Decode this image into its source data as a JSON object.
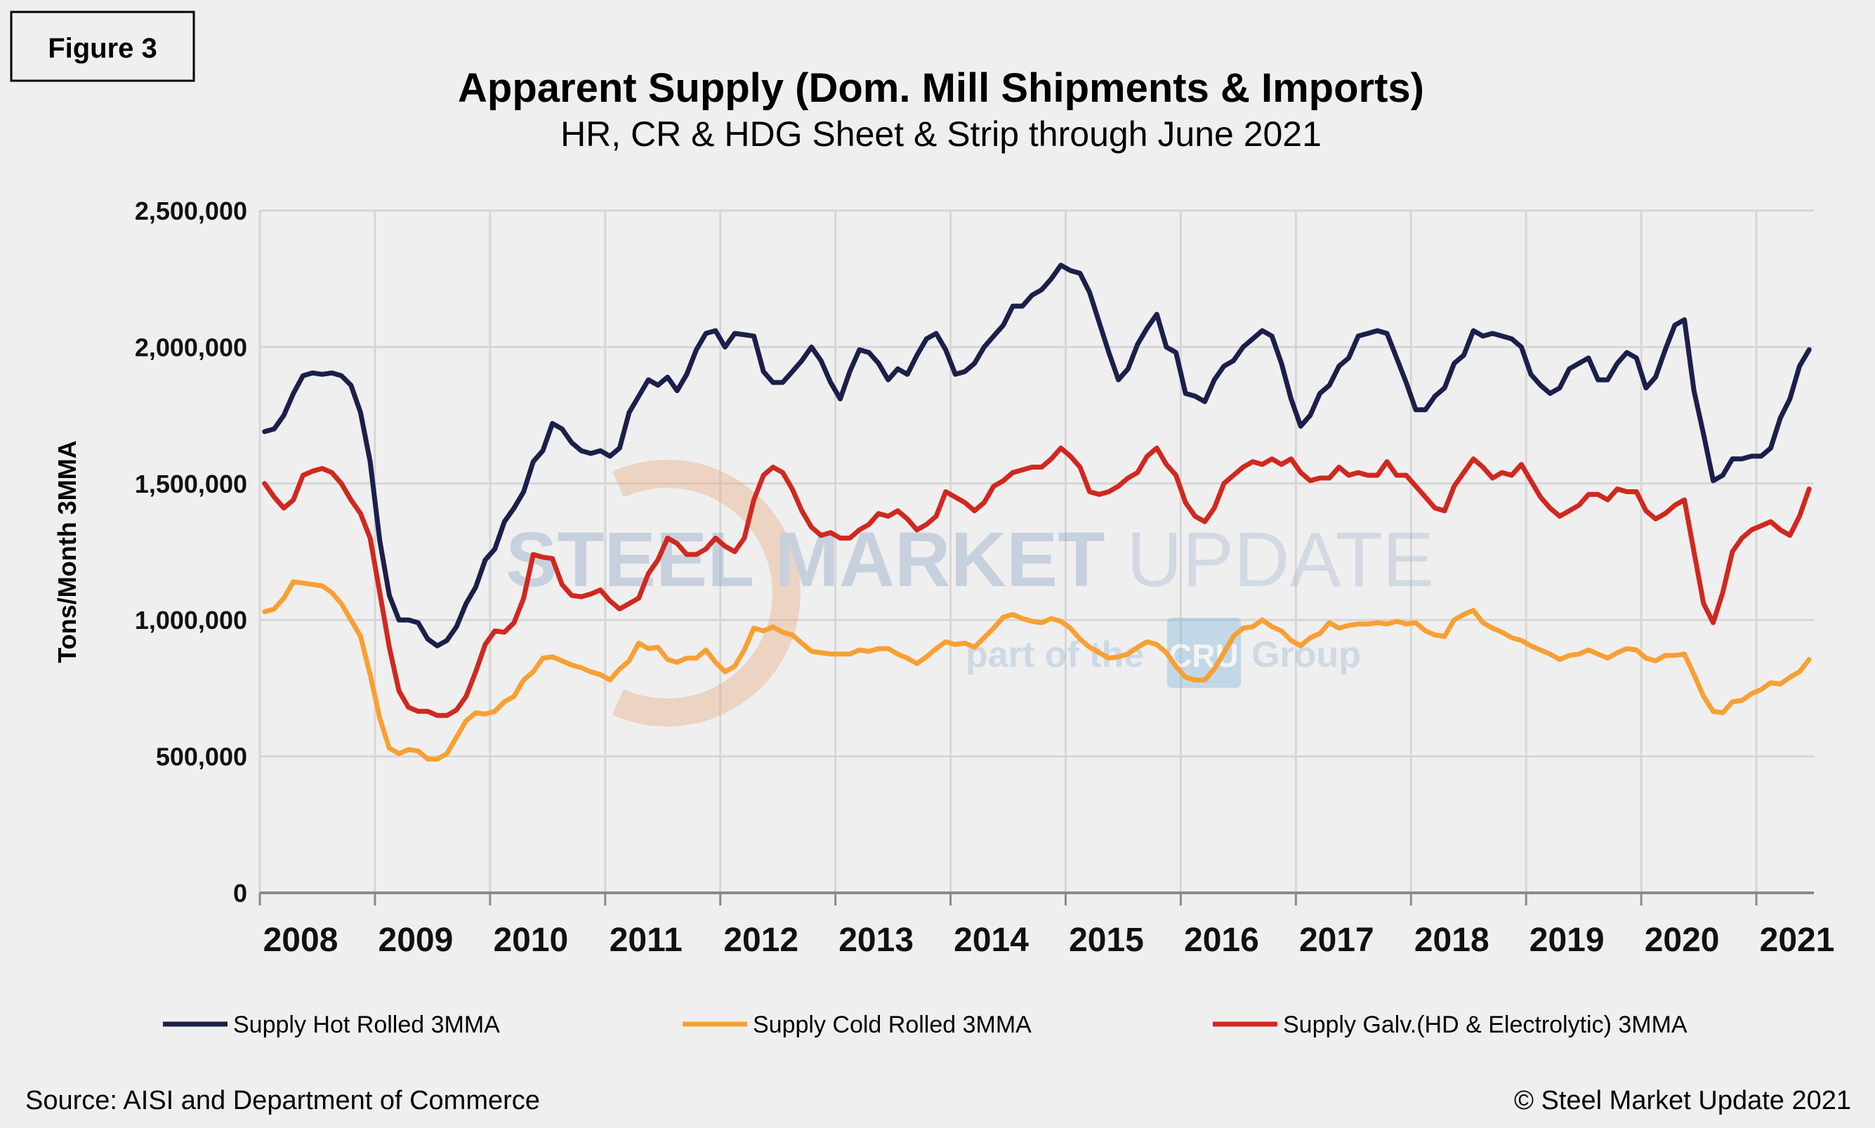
{
  "figure_label": "Figure 3",
  "footer": {
    "source": "Source: AISI and Department of Commerce",
    "copyright": "© Steel Market Update 2021"
  },
  "watermark": {
    "brand_bold": "STEEL MARKET",
    "brand_light": "UPDATE",
    "tagline_pre": "part of the",
    "tagline_logo": "CRU",
    "tagline_post": "Group"
  },
  "chart_data": {
    "type": "line",
    "title": "Apparent Supply (Dom. Mill Shipments & Imports)",
    "subtitle": "HR, CR & HDG Sheet & Strip through June 2021",
    "ylabel": "Tons/Month 3MMA",
    "xlabel": "",
    "x_start": "2008-01",
    "x_end": "2021-06",
    "x_frequency": "monthly",
    "x_tick_labels": [
      "2008",
      "2009",
      "2010",
      "2011",
      "2012",
      "2013",
      "2014",
      "2015",
      "2016",
      "2017",
      "2018",
      "2019",
      "2020",
      "2021"
    ],
    "ylim": [
      0,
      2500000
    ],
    "y_ticks": [
      0,
      500000,
      1000000,
      1500000,
      2000000,
      2500000
    ],
    "y_tick_labels": [
      "0",
      "500,000",
      "1,000,000",
      "1,500,000",
      "2,000,000",
      "2,500,000"
    ],
    "grid": true,
    "legend_position": "bottom",
    "series": [
      {
        "name": "Supply Hot Rolled 3MMA",
        "color": "#1b1f4b",
        "values_thousands": [
          1690,
          1700,
          1750,
          1830,
          1895,
          1905,
          1900,
          1905,
          1895,
          1860,
          1760,
          1580,
          1290,
          1090,
          1000,
          1000,
          990,
          930,
          905,
          925,
          975,
          1060,
          1120,
          1220,
          1260,
          1360,
          1410,
          1470,
          1580,
          1620,
          1720,
          1700,
          1650,
          1620,
          1610,
          1620,
          1600,
          1630,
          1760,
          1820,
          1880,
          1860,
          1890,
          1840,
          1900,
          1990,
          2050,
          2060,
          2000,
          2050,
          2045,
          2040,
          1910,
          1870,
          1870,
          1910,
          1950,
          2000,
          1950,
          1870,
          1810,
          1910,
          1990,
          1980,
          1940,
          1880,
          1920,
          1900,
          1970,
          2030,
          2050,
          1990,
          1900,
          1910,
          1940,
          2000,
          2040,
          2080,
          2150,
          2150,
          2190,
          2210,
          2250,
          2300,
          2280,
          2270,
          2200,
          2090,
          1980,
          1880,
          1920,
          2010,
          2070,
          2120,
          2000,
          1980,
          1830,
          1820,
          1800,
          1880,
          1930,
          1950,
          2000,
          2030,
          2060,
          2040,
          1940,
          1810,
          1710,
          1750,
          1830,
          1860,
          1930,
          1960,
          2040,
          2050,
          2060,
          2050,
          1960,
          1870,
          1770,
          1770,
          1820,
          1850,
          1940,
          1970,
          2060,
          2040,
          2050,
          2040,
          2030,
          2000,
          1900,
          1860,
          1830,
          1850,
          1920,
          1940,
          1960,
          1880,
          1880,
          1940,
          1980,
          1960,
          1850,
          1890,
          1990,
          2080,
          2100,
          1840,
          1680,
          1510,
          1530,
          1590,
          1590,
          1600,
          1600,
          1630,
          1740,
          1810,
          1930,
          1990
        ]
      },
      {
        "name": "Supply Cold Rolled 3MMA",
        "color": "#f7a034",
        "values_thousands": [
          1030,
          1040,
          1080,
          1140,
          1135,
          1130,
          1125,
          1100,
          1060,
          1000,
          940,
          800,
          640,
          530,
          510,
          525,
          520,
          490,
          490,
          510,
          570,
          630,
          660,
          655,
          665,
          700,
          720,
          780,
          810,
          860,
          865,
          850,
          835,
          825,
          810,
          800,
          780,
          820,
          850,
          915,
          895,
          900,
          855,
          845,
          860,
          860,
          890,
          845,
          810,
          830,
          890,
          970,
          960,
          975,
          955,
          945,
          915,
          885,
          880,
          875,
          875,
          875,
          890,
          885,
          895,
          895,
          875,
          860,
          840,
          865,
          895,
          920,
          910,
          915,
          900,
          935,
          970,
          1010,
          1020,
          1005,
          995,
          990,
          1005,
          995,
          970,
          930,
          900,
          880,
          860,
          865,
          875,
          900,
          920,
          910,
          880,
          830,
          790,
          780,
          780,
          820,
          880,
          940,
          970,
          975,
          1000,
          975,
          960,
          925,
          905,
          935,
          950,
          990,
          970,
          980,
          985,
          985,
          990,
          985,
          995,
          985,
          990,
          960,
          945,
          940,
          1000,
          1020,
          1035,
          990,
          970,
          955,
          935,
          925,
          905,
          890,
          875,
          855,
          870,
          875,
          890,
          875,
          860,
          880,
          895,
          890,
          860,
          850,
          870,
          870,
          875,
          800,
          720,
          665,
          660,
          700,
          705,
          730,
          745,
          770,
          765,
          790,
          810,
          855
        ]
      },
      {
        "name": "Supply Galv.(HD & Electrolytic) 3MMA",
        "color": "#d0281f",
        "values_thousands": [
          1500,
          1450,
          1410,
          1440,
          1530,
          1545,
          1555,
          1540,
          1500,
          1440,
          1390,
          1300,
          1100,
          900,
          740,
          680,
          665,
          665,
          650,
          650,
          670,
          720,
          810,
          910,
          960,
          955,
          990,
          1080,
          1240,
          1230,
          1225,
          1130,
          1090,
          1085,
          1095,
          1110,
          1070,
          1040,
          1060,
          1080,
          1170,
          1220,
          1300,
          1280,
          1240,
          1240,
          1260,
          1300,
          1270,
          1250,
          1300,
          1440,
          1530,
          1560,
          1540,
          1480,
          1400,
          1340,
          1310,
          1320,
          1300,
          1300,
          1330,
          1350,
          1390,
          1380,
          1400,
          1370,
          1330,
          1350,
          1380,
          1470,
          1450,
          1430,
          1400,
          1430,
          1490,
          1510,
          1540,
          1550,
          1560,
          1560,
          1590,
          1630,
          1600,
          1560,
          1470,
          1460,
          1470,
          1490,
          1520,
          1540,
          1600,
          1630,
          1570,
          1530,
          1430,
          1380,
          1360,
          1410,
          1500,
          1530,
          1560,
          1580,
          1570,
          1590,
          1570,
          1590,
          1540,
          1510,
          1520,
          1520,
          1560,
          1530,
          1540,
          1530,
          1530,
          1580,
          1530,
          1530,
          1490,
          1450,
          1410,
          1400,
          1490,
          1540,
          1590,
          1560,
          1520,
          1540,
          1530,
          1570,
          1510,
          1450,
          1410,
          1380,
          1400,
          1420,
          1460,
          1460,
          1440,
          1480,
          1470,
          1470,
          1400,
          1370,
          1390,
          1420,
          1440,
          1250,
          1060,
          990,
          1100,
          1250,
          1300,
          1330,
          1345,
          1360,
          1330,
          1310,
          1380,
          1480
        ]
      }
    ]
  }
}
